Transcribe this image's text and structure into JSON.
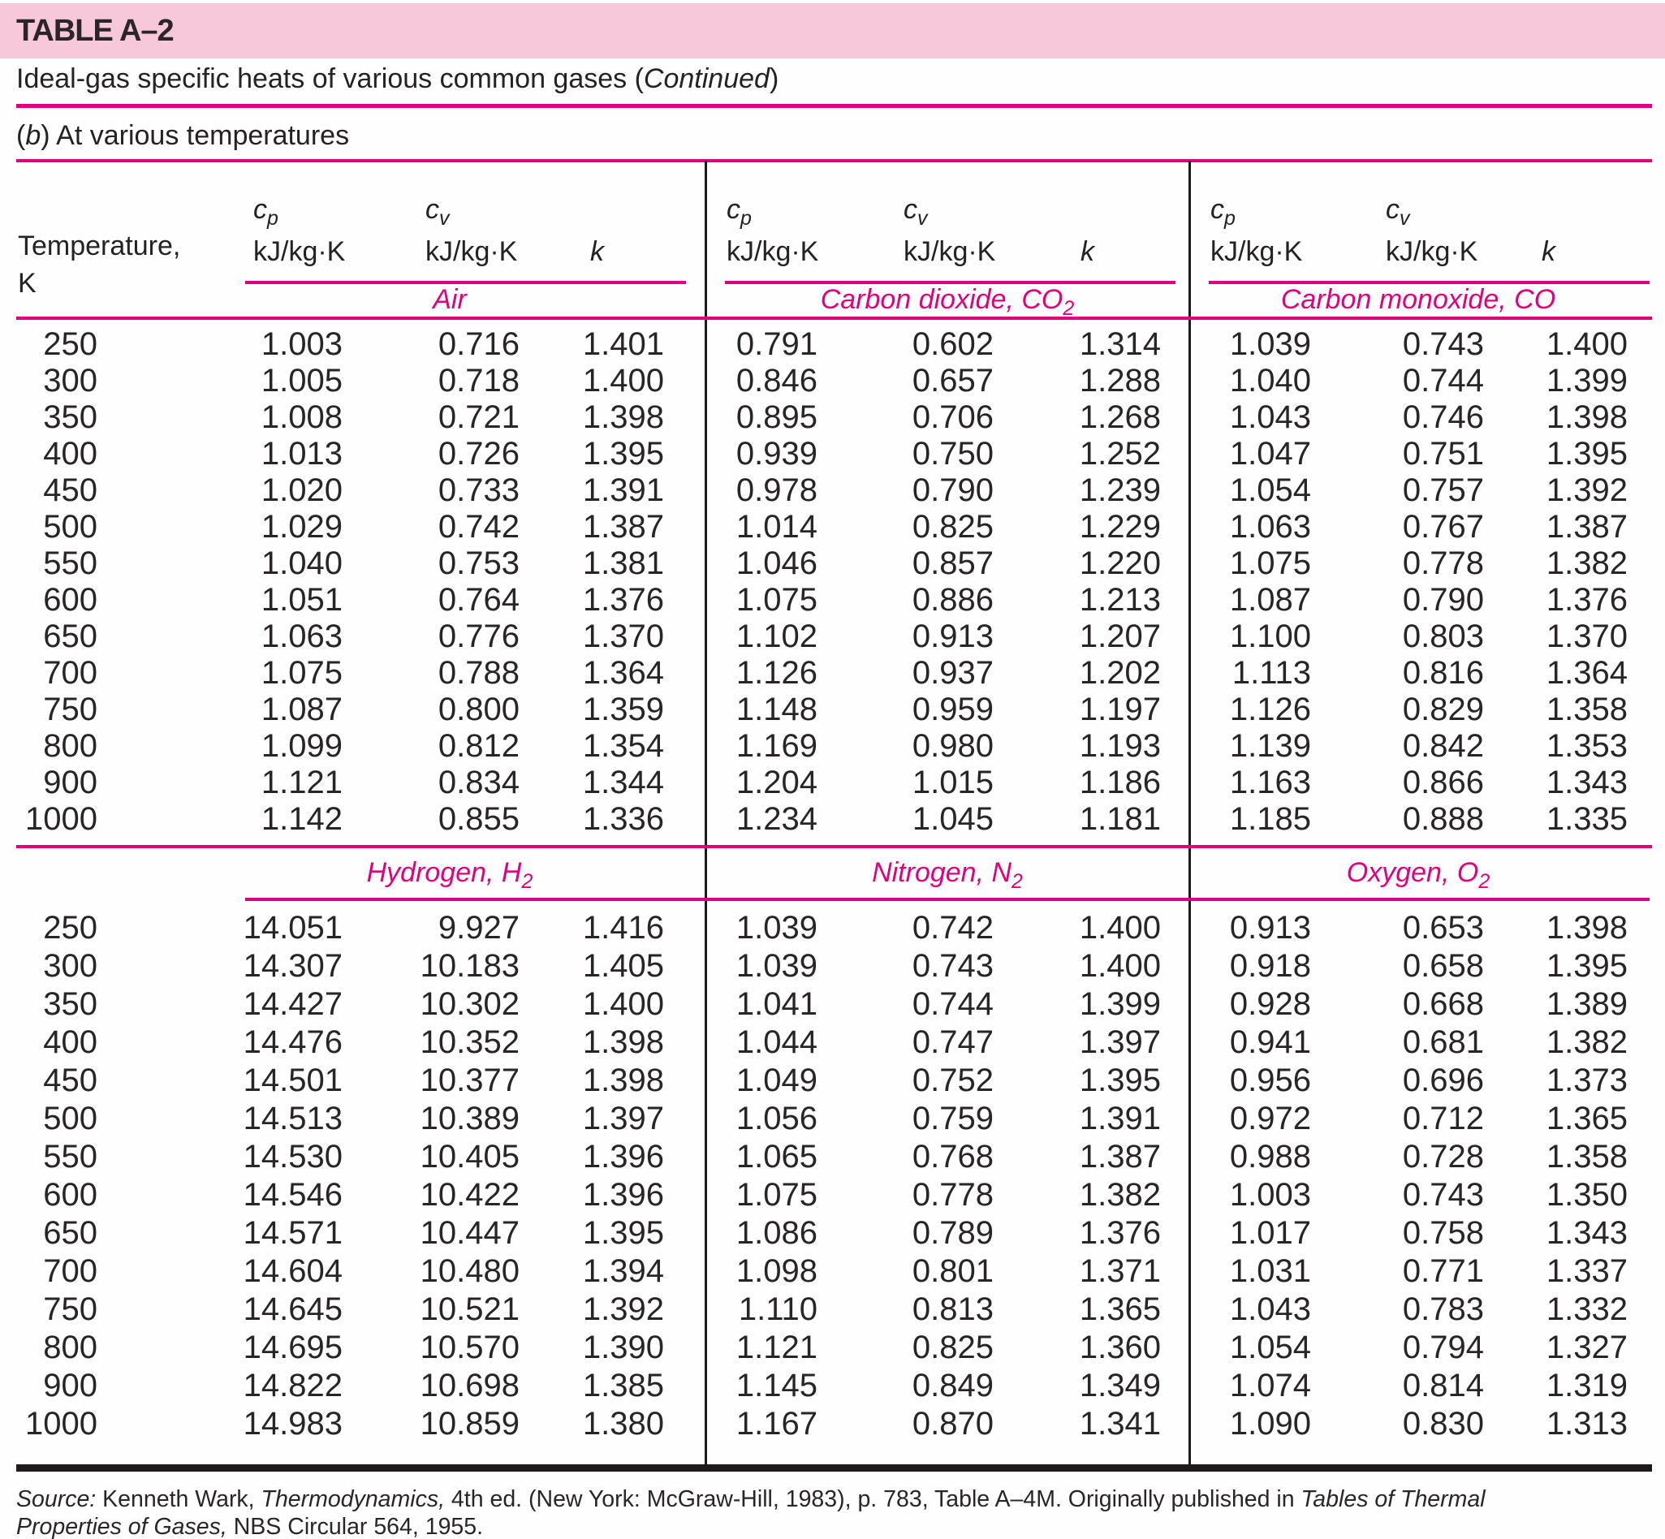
{
  "page": {
    "band_label": "TABLE A–2",
    "title": {
      "pre": "Ideal-gas specific heats of various common gases (",
      "emph": "Continued",
      "post": ")"
    },
    "subtitle": {
      "pre": "(",
      "emph": "b",
      "post": ") At various temperatures"
    },
    "temperature_header": {
      "line1": "Temperature,",
      "line2": "K"
    },
    "column_headers": {
      "symbol": "c",
      "cp_sub": "p",
      "cv_sub": "v",
      "unit": "kJ/kg·K",
      "k": "k"
    },
    "colors": {
      "band_pink": "#f7c7da",
      "magenta": "#e1007d",
      "ink": "#262123"
    },
    "sections": [
      {
        "gases": [
          {
            "name": "Air",
            "formula": "",
            "sub": ""
          },
          {
            "name": "Carbon dioxide,",
            "formula": "CO",
            "sub": "2"
          },
          {
            "name": "Carbon monoxide,",
            "formula": "CO",
            "sub": ""
          }
        ],
        "rows": [
          {
            "t": "250",
            "v": [
              "1.003",
              "0.716",
              "1.401",
              "0.791",
              "0.602",
              "1.314",
              "1.039",
              "0.743",
              "1.400"
            ]
          },
          {
            "t": "300",
            "v": [
              "1.005",
              "0.718",
              "1.400",
              "0.846",
              "0.657",
              "1.288",
              "1.040",
              "0.744",
              "1.399"
            ]
          },
          {
            "t": "350",
            "v": [
              "1.008",
              "0.721",
              "1.398",
              "0.895",
              "0.706",
              "1.268",
              "1.043",
              "0.746",
              "1.398"
            ]
          },
          {
            "t": "400",
            "v": [
              "1.013",
              "0.726",
              "1.395",
              "0.939",
              "0.750",
              "1.252",
              "1.047",
              "0.751",
              "1.395"
            ]
          },
          {
            "t": "450",
            "v": [
              "1.020",
              "0.733",
              "1.391",
              "0.978",
              "0.790",
              "1.239",
              "1.054",
              "0.757",
              "1.392"
            ]
          },
          {
            "t": "500",
            "v": [
              "1.029",
              "0.742",
              "1.387",
              "1.014",
              "0.825",
              "1.229",
              "1.063",
              "0.767",
              "1.387"
            ]
          },
          {
            "t": "550",
            "v": [
              "1.040",
              "0.753",
              "1.381",
              "1.046",
              "0.857",
              "1.220",
              "1.075",
              "0.778",
              "1.382"
            ]
          },
          {
            "t": "600",
            "v": [
              "1.051",
              "0.764",
              "1.376",
              "1.075",
              "0.886",
              "1.213",
              "1.087",
              "0.790",
              "1.376"
            ]
          },
          {
            "t": "650",
            "v": [
              "1.063",
              "0.776",
              "1.370",
              "1.102",
              "0.913",
              "1.207",
              "1.100",
              "0.803",
              "1.370"
            ]
          },
          {
            "t": "700",
            "v": [
              "1.075",
              "0.788",
              "1.364",
              "1.126",
              "0.937",
              "1.202",
              "1.113",
              "0.816",
              "1.364"
            ]
          },
          {
            "t": "750",
            "v": [
              "1.087",
              "0.800",
              "1.359",
              "1.148",
              "0.959",
              "1.197",
              "1.126",
              "0.829",
              "1.358"
            ]
          },
          {
            "t": "800",
            "v": [
              "1.099",
              "0.812",
              "1.354",
              "1.169",
              "0.980",
              "1.193",
              "1.139",
              "0.842",
              "1.353"
            ]
          },
          {
            "t": "900",
            "v": [
              "1.121",
              "0.834",
              "1.344",
              "1.204",
              "1.015",
              "1.186",
              "1.163",
              "0.866",
              "1.343"
            ]
          },
          {
            "t": "1000",
            "v": [
              "1.142",
              "0.855",
              "1.336",
              "1.234",
              "1.045",
              "1.181",
              "1.185",
              "0.888",
              "1.335"
            ]
          }
        ]
      },
      {
        "gases": [
          {
            "name": "Hydrogen,",
            "formula": "H",
            "sub": "2"
          },
          {
            "name": "Nitrogen,",
            "formula": "N",
            "sub": "2"
          },
          {
            "name": "Oxygen,",
            "formula": "O",
            "sub": "2"
          }
        ],
        "rows": [
          {
            "t": "250",
            "v": [
              "14.051",
              "9.927",
              "1.416",
              "1.039",
              "0.742",
              "1.400",
              "0.913",
              "0.653",
              "1.398"
            ]
          },
          {
            "t": "300",
            "v": [
              "14.307",
              "10.183",
              "1.405",
              "1.039",
              "0.743",
              "1.400",
              "0.918",
              "0.658",
              "1.395"
            ]
          },
          {
            "t": "350",
            "v": [
              "14.427",
              "10.302",
              "1.400",
              "1.041",
              "0.744",
              "1.399",
              "0.928",
              "0.668",
              "1.389"
            ]
          },
          {
            "t": "400",
            "v": [
              "14.476",
              "10.352",
              "1.398",
              "1.044",
              "0.747",
              "1.397",
              "0.941",
              "0.681",
              "1.382"
            ]
          },
          {
            "t": "450",
            "v": [
              "14.501",
              "10.377",
              "1.398",
              "1.049",
              "0.752",
              "1.395",
              "0.956",
              "0.696",
              "1.373"
            ]
          },
          {
            "t": "500",
            "v": [
              "14.513",
              "10.389",
              "1.397",
              "1.056",
              "0.759",
              "1.391",
              "0.972",
              "0.712",
              "1.365"
            ]
          },
          {
            "t": "550",
            "v": [
              "14.530",
              "10.405",
              "1.396",
              "1.065",
              "0.768",
              "1.387",
              "0.988",
              "0.728",
              "1.358"
            ]
          },
          {
            "t": "600",
            "v": [
              "14.546",
              "10.422",
              "1.396",
              "1.075",
              "0.778",
              "1.382",
              "1.003",
              "0.743",
              "1.350"
            ]
          },
          {
            "t": "650",
            "v": [
              "14.571",
              "10.447",
              "1.395",
              "1.086",
              "0.789",
              "1.376",
              "1.017",
              "0.758",
              "1.343"
            ]
          },
          {
            "t": "700",
            "v": [
              "14.604",
              "10.480",
              "1.394",
              "1.098",
              "0.801",
              "1.371",
              "1.031",
              "0.771",
              "1.337"
            ]
          },
          {
            "t": "750",
            "v": [
              "14.645",
              "10.521",
              "1.392",
              "1.110",
              "0.813",
              "1.365",
              "1.043",
              "0.783",
              "1.332"
            ]
          },
          {
            "t": "800",
            "v": [
              "14.695",
              "10.570",
              "1.390",
              "1.121",
              "0.825",
              "1.360",
              "1.054",
              "0.794",
              "1.327"
            ]
          },
          {
            "t": "900",
            "v": [
              "14.822",
              "10.698",
              "1.385",
              "1.145",
              "0.849",
              "1.349",
              "1.074",
              "0.814",
              "1.319"
            ]
          },
          {
            "t": "1000",
            "v": [
              "14.983",
              "10.859",
              "1.380",
              "1.167",
              "0.870",
              "1.341",
              "1.090",
              "0.830",
              "1.313"
            ]
          }
        ]
      }
    ],
    "source": {
      "parts": [
        {
          "t": "Source:",
          "i": 1
        },
        {
          "t": " Kenneth Wark, ",
          "i": 0
        },
        {
          "t": "Thermodynamics,",
          "i": 1
        },
        {
          "t": " 4th ed. (New York: McGraw-Hill, 1983), p. 783, Table A–4M. Originally published in ",
          "i": 0
        },
        {
          "t": "Tables of Thermal",
          "i": 1
        },
        {
          "br": 1
        },
        {
          "t": "Properties of Gases,",
          "i": 1
        },
        {
          "t": " NBS Circular 564, 1955.",
          "i": 0
        }
      ]
    }
  }
}
